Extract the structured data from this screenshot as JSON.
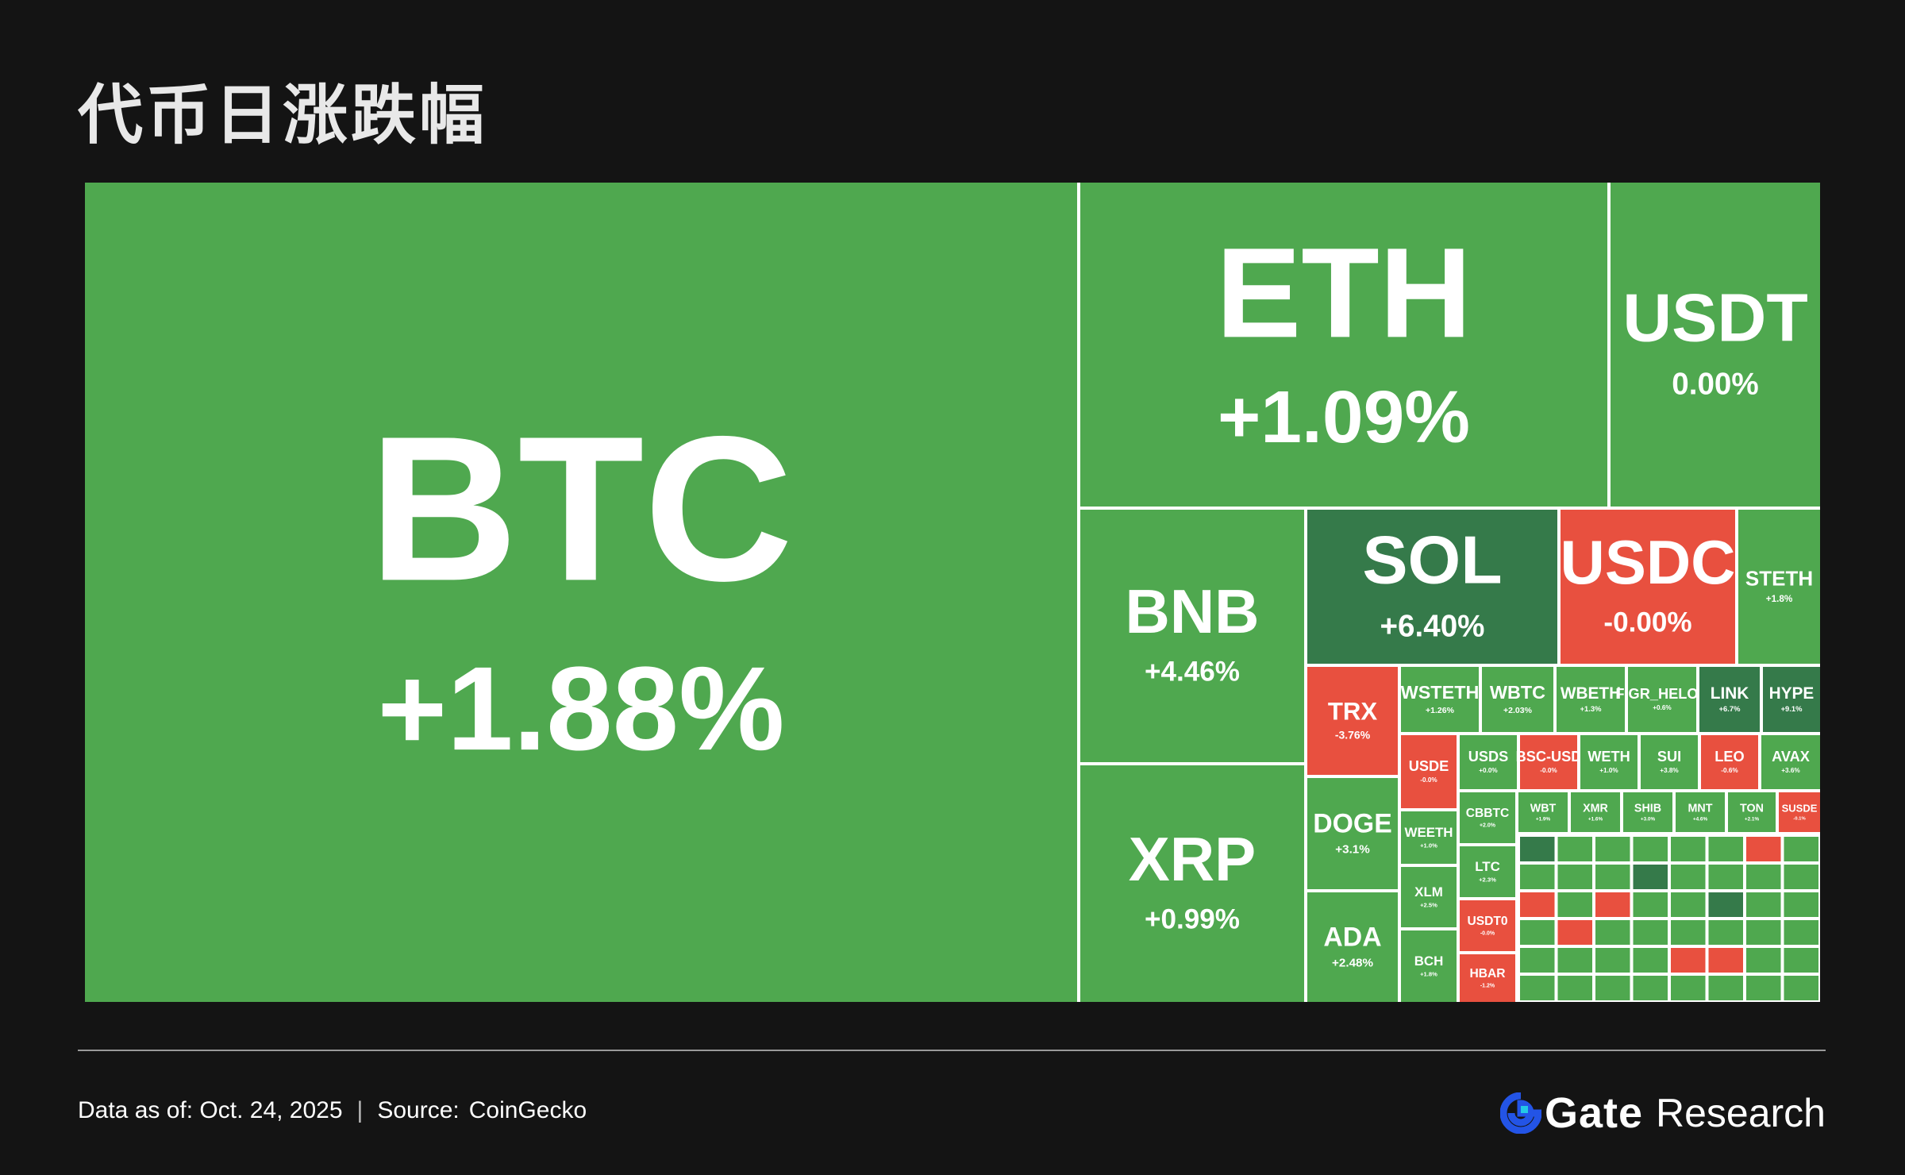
{
  "page": {
    "title": "代币日涨跌幅",
    "date_text": "Data as of: Oct. 24, 2025",
    "separator": "|",
    "source_label": "Source:",
    "source_name": "CoinGecko",
    "brand": "Gate",
    "brand_suffix": "Research",
    "logo_icon": "gate-logo-icon"
  },
  "colors": {
    "up": "#4fa84f",
    "strong_up": "#357a4a",
    "down": "#e8503f",
    "background": "#141414",
    "border": "#ffffff",
    "logo_blue": "#2354e6"
  },
  "chart_data": {
    "type": "treemap",
    "title": "代币日涨跌幅",
    "note": "tile area represents market capitalization; color represents daily change",
    "tiles": [
      {
        "name": "BTC",
        "change": "+1.88%",
        "value": 1.88
      },
      {
        "name": "ETH",
        "change": "+1.09%",
        "value": 1.09
      },
      {
        "name": "USDT",
        "change": "0.00%",
        "value": 0.0
      },
      {
        "name": "BNB",
        "change": "+4.46%",
        "value": 4.46
      },
      {
        "name": "SOL",
        "change": "+6.40%",
        "value": 6.4
      },
      {
        "name": "USDC",
        "change": "-0.00%",
        "value": -0.001
      },
      {
        "name": "STETH",
        "change": "+1.8%",
        "value": 1.8
      },
      {
        "name": "XRP",
        "change": "+0.99%",
        "value": 0.99
      },
      {
        "name": "TRX",
        "change": "-3.76%",
        "value": -3.76
      },
      {
        "name": "DOGE",
        "change": "+3.1%",
        "value": 3.1
      },
      {
        "name": "ADA",
        "change": "+2.48%",
        "value": 2.48
      },
      {
        "name": "WSTETH",
        "change": "+1.26%",
        "value": 1.26
      },
      {
        "name": "WBTC",
        "change": "+2.03%",
        "value": 2.03
      },
      {
        "name": "WBETH",
        "change": "+1.3%",
        "value": 1.3
      },
      {
        "name": "FIGR_HELOC",
        "change": "+0.6%",
        "value": 0.6
      },
      {
        "name": "LINK",
        "change": "+6.7%",
        "value": 6.7
      },
      {
        "name": "HYPE",
        "change": "+9.1%",
        "value": 9.1
      },
      {
        "name": "USDE",
        "change": "-0.0%",
        "value": -0.01
      },
      {
        "name": "USDS",
        "change": "+0.0%",
        "value": 0.01
      },
      {
        "name": "BSC-USD",
        "change": "-0.0%",
        "value": -0.01
      },
      {
        "name": "WETH",
        "change": "+1.0%",
        "value": 1.0
      },
      {
        "name": "SUI",
        "change": "+3.8%",
        "value": 3.8
      },
      {
        "name": "LEO",
        "change": "-0.6%",
        "value": -0.6
      },
      {
        "name": "AVAX",
        "change": "+3.6%",
        "value": 3.6
      },
      {
        "name": "CBBTC",
        "change": "+2.0%",
        "value": 2.0
      },
      {
        "name": "WBT",
        "change": "+1.9%",
        "value": 1.9
      },
      {
        "name": "XMR",
        "change": "+1.6%",
        "value": 1.6
      },
      {
        "name": "SHIB",
        "change": "+3.0%",
        "value": 3.0
      },
      {
        "name": "MNT",
        "change": "+4.6%",
        "value": 4.6
      },
      {
        "name": "TON",
        "change": "+2.1%",
        "value": 2.1
      },
      {
        "name": "SUSDE",
        "change": "-0.1%",
        "value": -0.1
      },
      {
        "name": "WEETH",
        "change": "+1.0%",
        "value": 1.0
      },
      {
        "name": "LTC",
        "change": "+2.3%",
        "value": 2.3
      },
      {
        "name": "XLM",
        "change": "+2.5%",
        "value": 2.5
      },
      {
        "name": "USDT0",
        "change": "-0.0%",
        "value": -0.01
      },
      {
        "name": "BCH",
        "change": "+1.8%",
        "value": 1.8
      },
      {
        "name": "HBAR",
        "change": "-1.2%",
        "value": -1.2
      }
    ]
  }
}
